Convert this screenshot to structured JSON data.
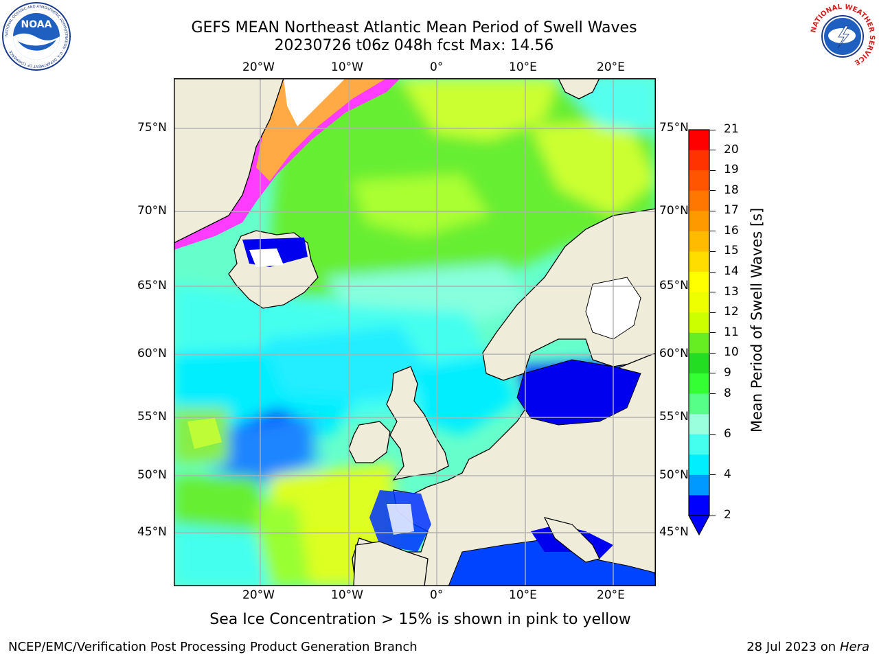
{
  "title": {
    "line1": "GEFS MEAN Northeast Atlantic Mean Period of Swell Waves",
    "line2": "20230726 t06z 048h fcst   Max: 14.56"
  },
  "map": {
    "lon_labels": [
      "20°W",
      "10°W",
      "0°",
      "10°E",
      "20°E"
    ],
    "lat_labels": [
      "75°N",
      "70°N",
      "65°N",
      "60°N",
      "55°N",
      "50°N",
      "45°N"
    ],
    "colors": {
      "land": "#efecda",
      "ice_pink": "#ff3cff",
      "ice_orange": "#ffa040",
      "grid": "#b0b0b0"
    }
  },
  "colorbar": {
    "label": "Mean Period of Swell Waves [s]",
    "ticks": [
      "21",
      "20",
      "19",
      "18",
      "17",
      "16",
      "15",
      "14",
      "13",
      "12",
      "11",
      "10",
      "9",
      "8",
      "6",
      "4",
      "2"
    ],
    "colors": [
      "#ff0000",
      "#ff3300",
      "#ff5500",
      "#ff7700",
      "#ff9900",
      "#ffbb00",
      "#ffdd00",
      "#ffff00",
      "#eeff00",
      "#ccff00",
      "#66ee22",
      "#22dd22",
      "#33ff33",
      "#55ff88",
      "#99ffdd",
      "#44ffee",
      "#00eeff",
      "#0099ff",
      "#0000ff"
    ]
  },
  "caption": "Sea Ice Concentration > 15% is shown in pink to yellow",
  "footer": {
    "left": "NCEP/EMC/Verification Post Processing Product Generation Branch",
    "right_prefix": "28 Jul 2023 on ",
    "right_italic": "Hera"
  },
  "logos": {
    "noaa": "NOAA",
    "noaa_ring": "NATIONAL OCEANIC AND ATMOSPHERIC ADMINISTRATION · U.S. DEPARTMENT OF COMMERCE",
    "nws_ring": "NATIONAL WEATHER SERVICE"
  }
}
